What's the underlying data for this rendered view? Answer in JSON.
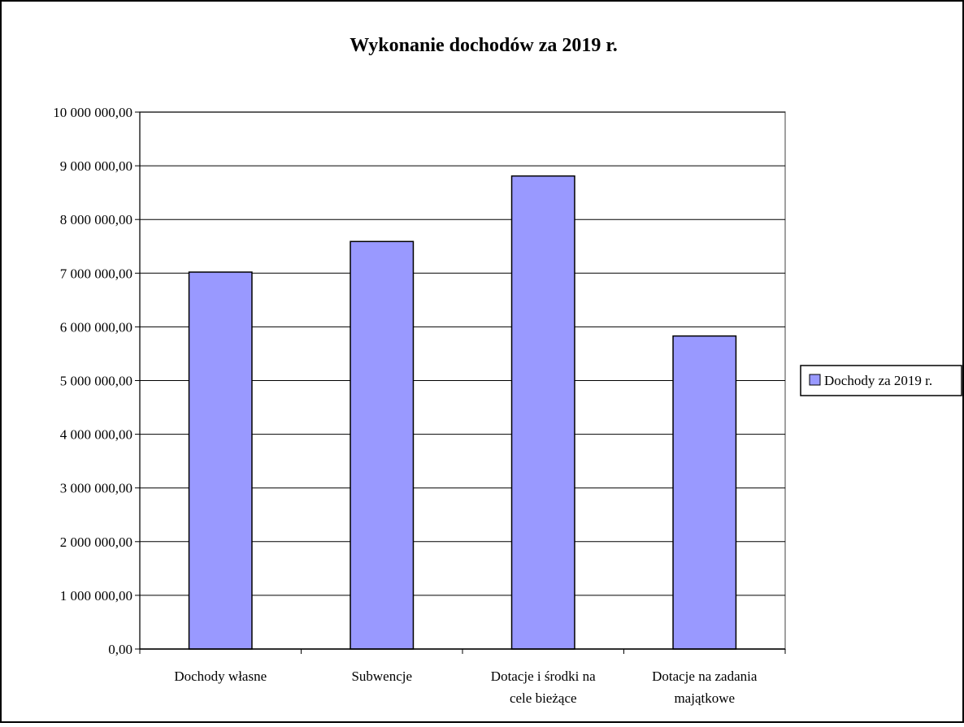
{
  "chart_data": {
    "type": "bar",
    "title": "Wykonanie dochodów za 2019 r.",
    "xlabel": "",
    "ylabel": "",
    "ylim": [
      0,
      10000000
    ],
    "yticks": [
      0,
      1000000,
      2000000,
      3000000,
      4000000,
      5000000,
      6000000,
      7000000,
      8000000,
      9000000,
      10000000
    ],
    "ytick_labels": [
      "0,00",
      "1 000 000,00",
      "2 000 000,00",
      "3 000 000,00",
      "4 000 000,00",
      "5 000 000,00",
      "6 000 000,00",
      "7 000 000,00",
      "8 000 000,00",
      "9 000 000,00",
      "10 000 000,00"
    ],
    "categories": [
      [
        "Dochody własne"
      ],
      [
        "Subwencje"
      ],
      [
        "Dotacje i środki na",
        "cele bieżące"
      ],
      [
        "Dotacje na zadania",
        "majątkowe"
      ]
    ],
    "series": [
      {
        "name": "Dochody za 2019 r.",
        "color": "#9999ff",
        "values": [
          7020000,
          7590000,
          8810000,
          5830000
        ]
      }
    ],
    "grid": true,
    "legend": "right"
  }
}
